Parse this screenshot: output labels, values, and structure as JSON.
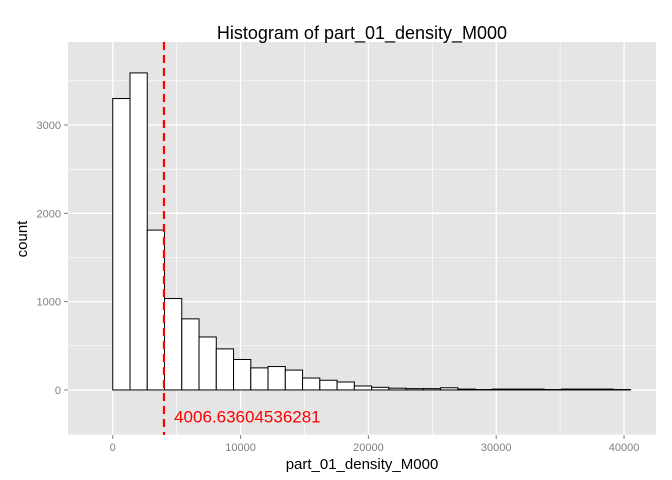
{
  "chart_data": {
    "type": "bar",
    "title": "Histogram of  part_01_density_M000",
    "xlabel": "part_01_density_M000",
    "ylabel": "count",
    "xlim": [
      -3500,
      42500
    ],
    "ylim": [
      -510,
      3940
    ],
    "xticks": [
      0,
      10000,
      20000,
      30000,
      40000
    ],
    "xtick_labels": [
      "0",
      "10000",
      "20000",
      "30000",
      "40000"
    ],
    "yticks": [
      0,
      1000,
      2000,
      3000
    ],
    "ytick_labels": [
      "0",
      "1000",
      "2000",
      "3000"
    ],
    "grid": true,
    "background_color": "#e5e5e5",
    "grid_color": "#ffffff",
    "bar_fill": "#ffffff",
    "bar_stroke": "#000000",
    "bins": [
      {
        "x0": -1350,
        "x1": 0,
        "count": 0
      },
      {
        "x0": 0,
        "x1": 1350,
        "count": 3300
      },
      {
        "x0": 1350,
        "x1": 2700,
        "count": 3590
      },
      {
        "x0": 2700,
        "x1": 4050,
        "count": 1810
      },
      {
        "x0": 4050,
        "x1": 5400,
        "count": 1035
      },
      {
        "x0": 5400,
        "x1": 6750,
        "count": 805
      },
      {
        "x0": 6750,
        "x1": 8100,
        "count": 600
      },
      {
        "x0": 8100,
        "x1": 9450,
        "count": 465
      },
      {
        "x0": 9450,
        "x1": 10800,
        "count": 345
      },
      {
        "x0": 10800,
        "x1": 12150,
        "count": 250
      },
      {
        "x0": 12150,
        "x1": 13500,
        "count": 265
      },
      {
        "x0": 13500,
        "x1": 14850,
        "count": 225
      },
      {
        "x0": 14850,
        "x1": 16200,
        "count": 135
      },
      {
        "x0": 16200,
        "x1": 17550,
        "count": 110
      },
      {
        "x0": 17550,
        "x1": 18900,
        "count": 90
      },
      {
        "x0": 18900,
        "x1": 20250,
        "count": 45
      },
      {
        "x0": 20250,
        "x1": 21600,
        "count": 30
      },
      {
        "x0": 21600,
        "x1": 22950,
        "count": 20
      },
      {
        "x0": 22950,
        "x1": 24300,
        "count": 15
      },
      {
        "x0": 24300,
        "x1": 25650,
        "count": 15
      },
      {
        "x0": 25650,
        "x1": 27000,
        "count": 25
      },
      {
        "x0": 27000,
        "x1": 28350,
        "count": 10
      },
      {
        "x0": 28350,
        "x1": 29700,
        "count": 5
      },
      {
        "x0": 29700,
        "x1": 31050,
        "count": 10
      },
      {
        "x0": 31050,
        "x1": 32400,
        "count": 10
      },
      {
        "x0": 32400,
        "x1": 33750,
        "count": 10
      },
      {
        "x0": 33750,
        "x1": 35100,
        "count": 5
      },
      {
        "x0": 35100,
        "x1": 36450,
        "count": 10
      },
      {
        "x0": 36450,
        "x1": 37800,
        "count": 10
      },
      {
        "x0": 37800,
        "x1": 39150,
        "count": 10
      },
      {
        "x0": 39150,
        "x1": 40500,
        "count": 5
      }
    ],
    "vline": {
      "x": 4006.63604536281,
      "color": "#ff0000",
      "style": "dashed"
    },
    "annotation": {
      "text": "4006.63604536281",
      "x": 4800,
      "y": -300,
      "color": "#ff0000"
    }
  }
}
